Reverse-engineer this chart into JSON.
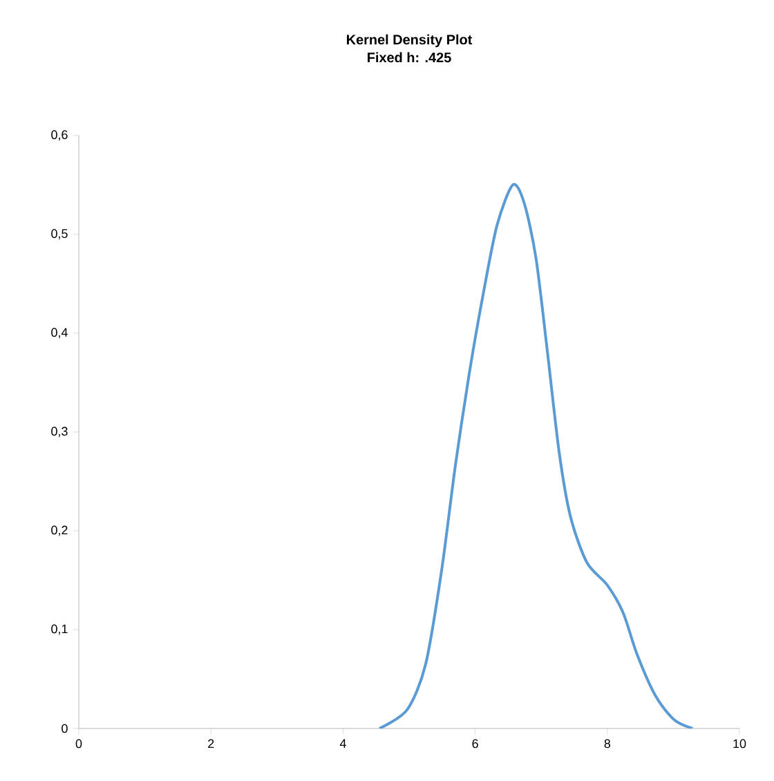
{
  "chart_data": {
    "type": "line",
    "title": "Kernel Density Plot",
    "subtitle": "Fixed h: .425",
    "x": [
      4.55,
      4.97,
      5.25,
      5.49,
      5.7,
      5.91,
      6.12,
      6.33,
      6.57,
      6.74,
      6.92,
      7.09,
      7.27,
      7.44,
      7.69,
      8.0,
      8.24,
      8.45,
      8.73,
      9.01,
      9.29
    ],
    "values": [
      0.0,
      0.019,
      0.065,
      0.159,
      0.266,
      0.359,
      0.439,
      0.509,
      0.55,
      0.532,
      0.476,
      0.383,
      0.28,
      0.215,
      0.168,
      0.145,
      0.117,
      0.075,
      0.033,
      0.009,
      0.0
    ],
    "color": "#5b9bd5",
    "xlim": [
      0,
      10
    ],
    "ylim": [
      0,
      0.6
    ],
    "xticks": [
      0,
      2,
      4,
      6,
      8,
      10
    ],
    "yticks": [
      {
        "value": 0,
        "label": "0"
      },
      {
        "value": 0.1,
        "label": "0,1"
      },
      {
        "value": 0.2,
        "label": "0,2"
      },
      {
        "value": 0.3,
        "label": "0,3"
      },
      {
        "value": 0.4,
        "label": "0,4"
      },
      {
        "value": 0.5,
        "label": "0,5"
      },
      {
        "value": 0.6,
        "label": "0,6"
      }
    ],
    "grid": false,
    "marker": "none",
    "line_style": "solid"
  }
}
